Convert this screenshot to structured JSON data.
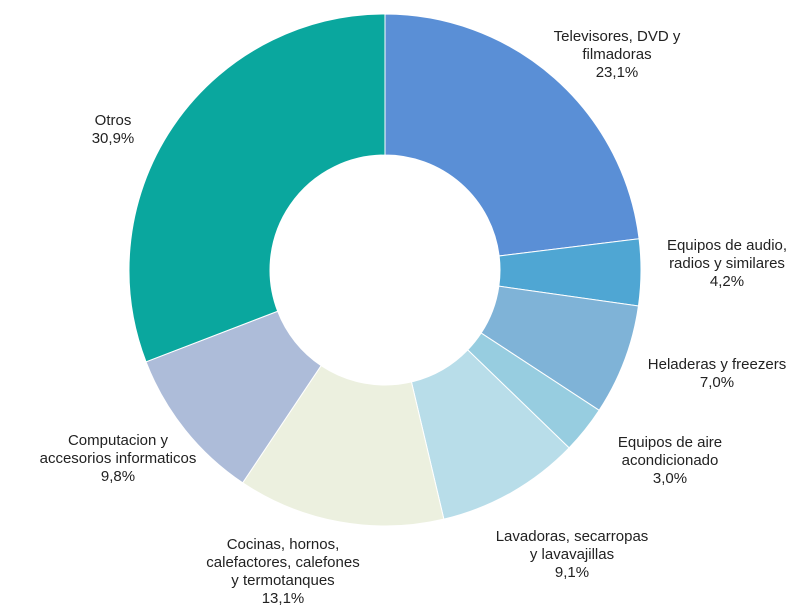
{
  "chart_data": {
    "type": "donut",
    "categories": [
      "Televisores, DVD y\nfilmadoras",
      "Equipos de audio,\nradios y similares",
      "Heladeras y freezers",
      "Equipos de aire\nacondicionado",
      "Lavadoras, secarropas\ny lavavajillas",
      "Cocinas, hornos,\ncalefactores, calefones\ny termotanques",
      "Computacion y\naccesorios informaticos",
      "Otros"
    ],
    "values": [
      23.1,
      4.2,
      7.0,
      3.0,
      9.1,
      13.1,
      9.8,
      30.9
    ],
    "value_labels": [
      "23,1%",
      "4,2%",
      "7,0%",
      "3,0%",
      "9,1%",
      "13,1%",
      "9,8%",
      "30,9%"
    ],
    "colors": [
      "#5a8fd6",
      "#4fa6d3",
      "#7fb3d7",
      "#97cde0",
      "#b8dde9",
      "#ecf0df",
      "#adbcd9",
      "#0aa79e"
    ]
  }
}
